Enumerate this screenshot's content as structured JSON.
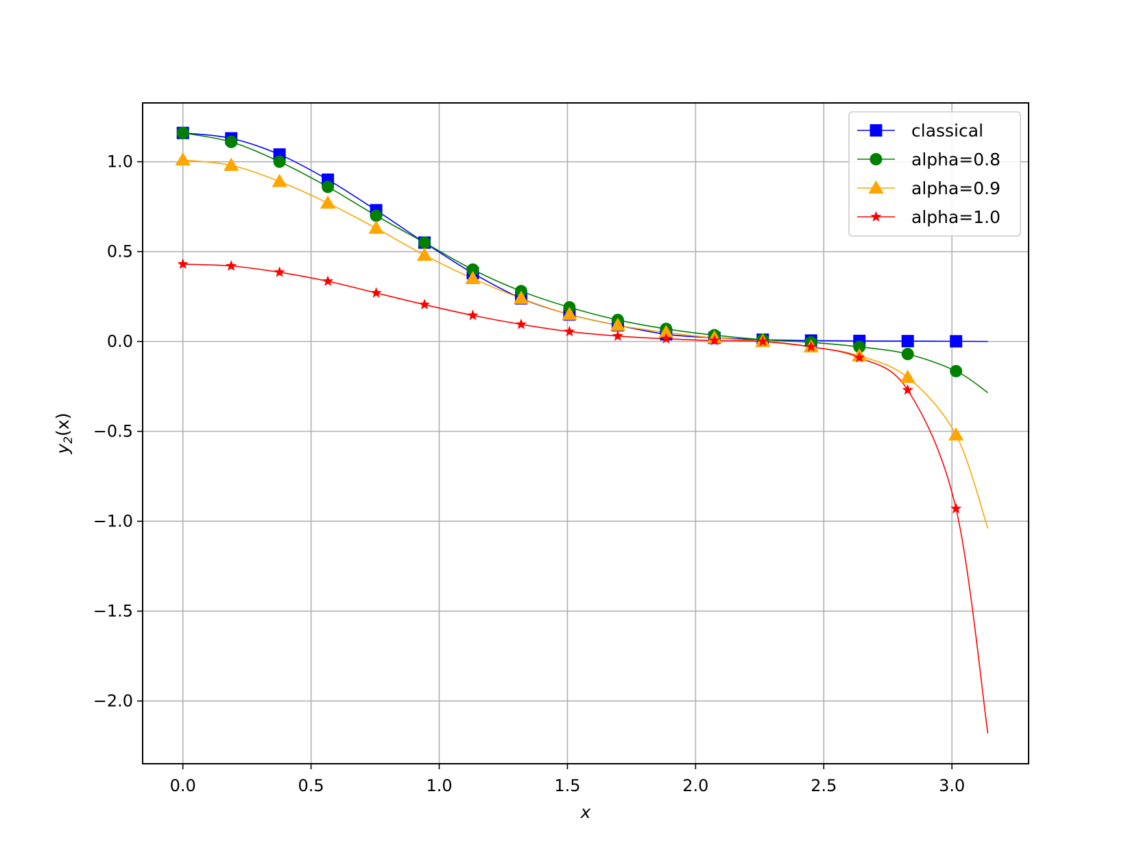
{
  "chart_data": {
    "type": "line",
    "title": "",
    "xlabel": "x",
    "ylabel_main": "y",
    "ylabel_sub": "2",
    "ylabel_tail": "(x)",
    "xlim": [
      -0.157,
      3.299
    ],
    "ylim": [
      -2.349,
      1.327
    ],
    "xticks": [
      0.0,
      0.5,
      1.0,
      1.5,
      2.0,
      2.5,
      3.0
    ],
    "xtick_labels": [
      "0.0",
      "0.5",
      "1.0",
      "1.5",
      "2.0",
      "2.5",
      "3.0"
    ],
    "yticks": [
      1.0,
      0.5,
      0.0,
      -0.5,
      -1.0,
      -1.5,
      -2.0
    ],
    "ytick_labels": [
      "1.0",
      "0.5",
      "0.0",
      "−0.5",
      "−1.0",
      "−1.5",
      "−2.0"
    ],
    "grid": true,
    "legend_position": "top-right",
    "x": [
      0.0,
      0.1885,
      0.377,
      0.5655,
      0.754,
      0.9425,
      1.131,
      1.3195,
      1.508,
      1.6965,
      1.885,
      2.0735,
      2.262,
      2.4505,
      2.639,
      2.8275,
      3.016
    ],
    "series": [
      {
        "name": "classical",
        "color": "#0000ff",
        "marker": "square",
        "values": [
          1.16,
          1.13,
          1.04,
          0.9,
          0.73,
          0.55,
          0.38,
          0.24,
          0.15,
          0.09,
          0.04,
          0.02,
          0.01,
          0.005,
          0.003,
          0.002,
          0.001
        ],
        "curve_end": [
          3.14,
          0.0
        ]
      },
      {
        "name": "alpha=0.8",
        "color": "#008000",
        "marker": "circle",
        "values": [
          1.16,
          1.11,
          1.0,
          0.86,
          0.7,
          0.55,
          0.4,
          0.28,
          0.19,
          0.12,
          0.07,
          0.035,
          0.01,
          -0.005,
          -0.03,
          -0.07,
          -0.165
        ],
        "curve_end": [
          3.14,
          -0.285
        ]
      },
      {
        "name": "alpha=0.9",
        "color": "#ffa500",
        "marker": "triangle",
        "values": [
          1.01,
          0.98,
          0.89,
          0.77,
          0.63,
          0.48,
          0.35,
          0.24,
          0.15,
          0.09,
          0.05,
          0.02,
          0.0,
          -0.03,
          -0.08,
          -0.2,
          -0.52
        ],
        "curve_end": [
          3.14,
          -1.04
        ]
      },
      {
        "name": "alpha=1.0",
        "color": "#ff0000",
        "marker": "star",
        "values": [
          0.43,
          0.42,
          0.385,
          0.335,
          0.27,
          0.205,
          0.145,
          0.095,
          0.055,
          0.03,
          0.015,
          0.005,
          0.0,
          -0.03,
          -0.09,
          -0.27,
          -0.93
        ],
        "curve_end": [
          3.14,
          -2.18
        ]
      }
    ]
  }
}
